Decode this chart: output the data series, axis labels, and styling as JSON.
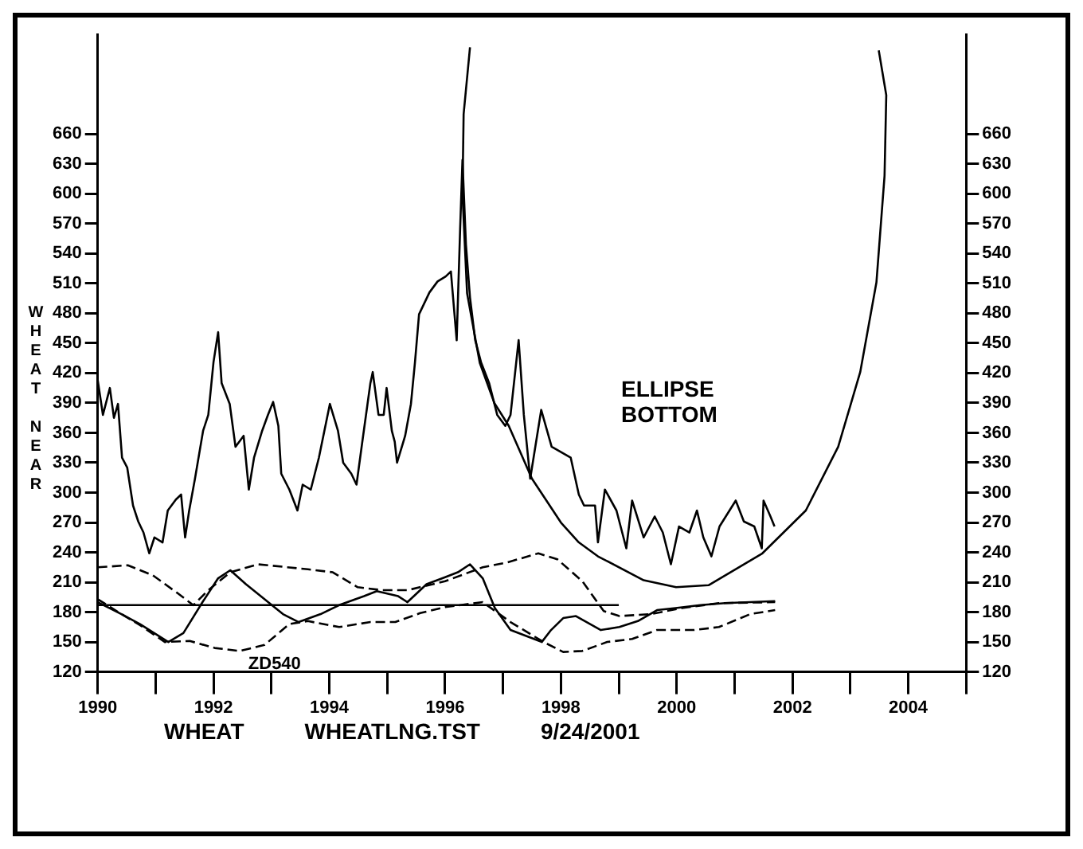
{
  "chart_data": {
    "type": "line",
    "ylabel": "WHEAT NEAR",
    "annotations": [
      "WHEAT",
      "WHEATLNG.TST",
      "9/24/2001",
      "ELLIPSE BOTTOM"
    ],
    "xlim": [
      1990,
      2005
    ],
    "xticks": [
      1990,
      {
        "value": 1991,
        "label": null
      },
      1992,
      {
        "value": 1993,
        "label": null
      },
      1994,
      {
        "value": 1995,
        "label": null
      },
      1996,
      {
        "value": 1997,
        "label": null
      },
      1998,
      {
        "value": 1999,
        "label": null
      },
      2000,
      {
        "value": 2001,
        "label": null
      },
      2002,
      {
        "value": 2003,
        "label": null
      },
      2004,
      {
        "value": 2005,
        "label": null
      }
    ],
    "ylim": [
      120,
      760
    ],
    "yticks": [
      120,
      150,
      180,
      210,
      240,
      270,
      300,
      330,
      360,
      390,
      420,
      450,
      480,
      510,
      540,
      570,
      600,
      630,
      660
    ],
    "y2lim": [
      120,
      760
    ],
    "y2ticks": [
      120,
      150,
      180,
      210,
      240,
      270,
      300,
      330,
      360,
      390,
      420,
      450,
      480,
      510,
      540,
      570,
      600,
      630,
      660
    ],
    "grid": false,
    "legend": false,
    "marker": "none",
    "series": [
      {
        "color": "#000000",
        "line_style": "solid",
        "x": [
          1990.0,
          1990.09,
          1990.21,
          1990.28,
          1990.35,
          1990.42,
          1990.51,
          1990.61,
          1990.7,
          1990.79,
          1990.89,
          1990.98,
          1991.12,
          1991.21,
          1991.35,
          1991.44,
          1991.51,
          1991.58,
          1991.68,
          1991.82,
          1991.91,
          1992.0,
          1992.08,
          1992.14,
          1992.28,
          1992.38,
          1992.52,
          1992.61,
          1992.7,
          1992.84,
          1992.94,
          1993.03,
          1993.12,
          1993.17,
          1993.31,
          1993.45,
          1993.54,
          1993.68,
          1993.82,
          1994.01,
          1994.15,
          1994.24,
          1994.38,
          1994.47,
          1994.57,
          1994.71,
          1994.75,
          1994.85,
          1994.94,
          1994.99,
          1995.08,
          1995.13,
          1995.17,
          1995.31,
          1995.41,
          1995.48,
          1995.55,
          1995.64,
          1995.73,
          1995.87,
          1996.01,
          1996.1,
          1996.2,
          1996.26,
          1996.3,
          1996.36,
          1996.43,
          1996.52,
          1996.62,
          1996.76,
          1996.9,
          1997.04,
          1997.13,
          1997.27,
          1997.36,
          1997.47,
          1997.66,
          1997.84,
          1998.17,
          1998.31,
          1998.4,
          1998.59,
          1998.64,
          1998.76,
          1998.96,
          1999.13,
          1999.23,
          1999.43,
          1999.62,
          1999.76,
          1999.9,
          2000.04,
          2000.22,
          2000.35,
          2000.46,
          2000.6,
          2000.74,
          2001.02,
          2001.16,
          2001.34,
          2001.47,
          2001.5,
          2001.62,
          2001.69
        ],
        "values": [
          413,
          378,
          405,
          375,
          389,
          335,
          325,
          287,
          271,
          260,
          239,
          255,
          250,
          282,
          293,
          298,
          255,
          282,
          314,
          362,
          378,
          431,
          461,
          410,
          389,
          346,
          357,
          303,
          335,
          362,
          378,
          391,
          367,
          319,
          303,
          282,
          308,
          303,
          335,
          389,
          362,
          330,
          319,
          308,
          351,
          410,
          421,
          378,
          378,
          405,
          362,
          351,
          330,
          357,
          389,
          431,
          479,
          490,
          501,
          512,
          517,
          522,
          453,
          565,
          634,
          549,
          496,
          453,
          431,
          410,
          378,
          367,
          378,
          453,
          378,
          314,
          383,
          346,
          335,
          298,
          287,
          287,
          250,
          303,
          282,
          244,
          292,
          255,
          276,
          260,
          228,
          266,
          260,
          282,
          255,
          236,
          266,
          292,
          271,
          266,
          244,
          292,
          276,
          266
        ]
      },
      {
        "color": "#000000",
        "line_style": "solid",
        "x": [
          1996.43,
          1996.32,
          1996.3,
          1996.38,
          1996.6,
          1996.85,
          1997.1,
          1997.5,
          1998.0,
          1998.31,
          1998.64,
          1999.43,
          1999.99,
          2000.55,
          2001.48,
          2002.23,
          2002.79,
          2003.17,
          2003.45,
          2003.59,
          2003.62,
          2003.49
        ],
        "values": [
          747,
          680,
          600,
          500,
          430,
          390,
          367,
          314,
          270,
          250,
          236,
          212,
          205,
          207,
          239,
          282,
          346,
          421,
          511,
          618,
          699,
          744
        ]
      },
      {
        "color": "#000000",
        "line_style": "solid",
        "x": [
          1990.0,
          1990.41,
          1990.73,
          1991.22,
          1991.48,
          1991.81,
          1992.08,
          1992.29,
          1992.56,
          1992.88,
          1993.2,
          1993.47,
          1993.85,
          1994.17,
          1994.6,
          1994.82,
          1995.19,
          1995.35,
          1995.68,
          1996.0,
          1996.22,
          1996.43,
          1996.65,
          1996.86,
          1997.13,
          1997.4,
          1997.67,
          1997.83,
          1998.04,
          1998.26,
          1998.69,
          1999.01,
          1999.33,
          1999.66,
          1999.98,
          2000.41,
          2000.84,
          2001.27,
          2001.7
        ],
        "values": [
          190,
          178,
          168,
          150,
          159,
          190,
          214,
          222,
          208,
          193,
          178,
          170,
          178,
          187,
          196,
          201,
          196,
          190,
          208,
          215,
          220,
          228,
          214,
          184,
          162,
          156,
          150,
          162,
          174,
          176,
          162,
          165,
          171,
          182,
          184,
          187,
          189,
          190,
          191
        ]
      },
      {
        "color": "#000000",
        "line_style": "dashed",
        "x": [
          1990.0,
          1990.52,
          1990.95,
          1991.38,
          1991.65,
          1991.91,
          1992.29,
          1992.77,
          1993.63,
          1994.06,
          1994.49,
          1994.92,
          1995.35,
          1996.0,
          1996.65,
          1997.08,
          1997.61,
          1997.94,
          1998.37,
          1998.74,
          1999.01,
          1999.55,
          2000.09,
          2000.73,
          2001.7
        ],
        "values": [
          225,
          227,
          217,
          199,
          187,
          202,
          220,
          228,
          223,
          220,
          205,
          202,
          202,
          211,
          225,
          230,
          239,
          233,
          211,
          181,
          176,
          178,
          184,
          189,
          190
        ]
      },
      {
        "name": "ZD540",
        "color": "#000000",
        "line_style": "dashed",
        "x": [
          1990.0,
          1990.41,
          1990.73,
          1991.16,
          1991.59,
          1992.02,
          1992.45,
          1992.88,
          1993.31,
          1993.63,
          1994.17,
          1994.71,
          1995.14,
          1995.57,
          1996.0,
          1996.65,
          1997.13,
          1997.7,
          1998.04,
          1998.37,
          1998.8,
          1999.23,
          1999.66,
          2000.3,
          2000.73,
          2001.27,
          2001.7
        ],
        "values": [
          193,
          178,
          167,
          150,
          151,
          144,
          141,
          147,
          168,
          171,
          165,
          170,
          170,
          179,
          185,
          190,
          170,
          150,
          140,
          141,
          150,
          153,
          162,
          162,
          165,
          178,
          182
        ]
      },
      {
        "color": "#000000",
        "line_style": "solid",
        "x": [
          1990,
          1999
        ],
        "values": [
          187,
          187
        ]
      }
    ]
  }
}
